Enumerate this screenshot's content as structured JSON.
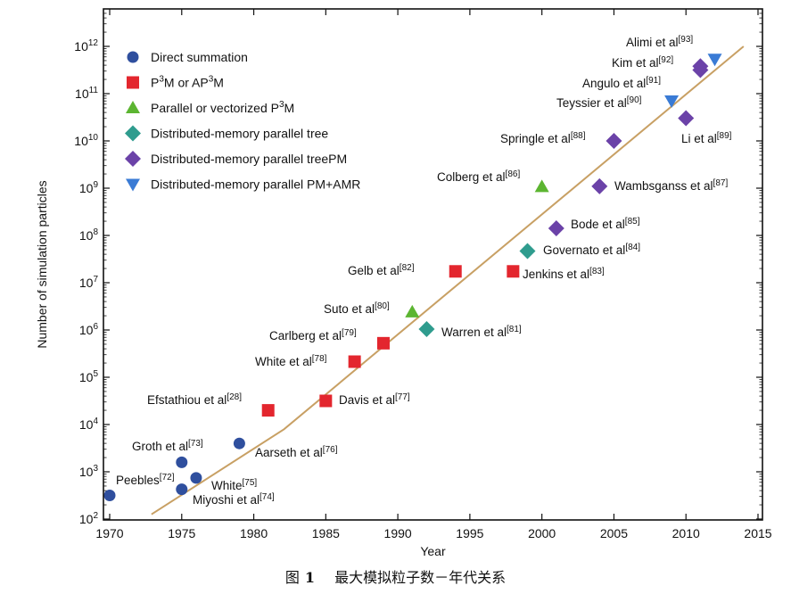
{
  "chart_data": {
    "type": "scatter",
    "xlabel": "Year",
    "ylabel": "Number of simulation particles",
    "xlim": [
      1970,
      2015
    ],
    "ylim_log10": [
      2,
      12.5
    ],
    "y_scale": "log",
    "x_ticks": [
      1970,
      1975,
      1980,
      1985,
      1990,
      1995,
      2000,
      2005,
      2010,
      2015
    ],
    "y_ticks": [
      {
        "exp": 2,
        "base": "10",
        "sup": "2"
      },
      {
        "exp": 3,
        "base": "10",
        "sup": "3"
      },
      {
        "exp": 4,
        "base": "10",
        "sup": "4"
      },
      {
        "exp": 5,
        "base": "10",
        "sup": "5"
      },
      {
        "exp": 6,
        "base": "10",
        "sup": "6"
      },
      {
        "exp": 7,
        "base": "10",
        "sup": "7"
      },
      {
        "exp": 8,
        "base": "10",
        "sup": "8"
      },
      {
        "exp": 9,
        "base": "10",
        "sup": "9"
      },
      {
        "exp": 10,
        "base": "10",
        "sup": "10"
      },
      {
        "exp": 11,
        "base": "10",
        "sup": "11"
      },
      {
        "exp": 12,
        "base": "10",
        "sup": "12"
      }
    ],
    "legend_position": "top-left",
    "grid": false,
    "trend_line": {
      "color": "#c8a064",
      "points": [
        [
          1972.9,
          2.1
        ],
        [
          1982.1,
          3.9
        ],
        [
          2014,
          12.0
        ]
      ]
    },
    "series": [
      {
        "name": "Direct summation",
        "marker": "circle",
        "color": "#2f4f9e",
        "points": [
          {
            "x": 1970,
            "y": 2.5,
            "label": "",
            "ref": ""
          },
          {
            "x": 1975,
            "y": 2.63,
            "label": "",
            "ref": ""
          },
          {
            "x": 1975,
            "y": 3.2,
            "label": "Groth et al",
            "ref": "[73]"
          },
          {
            "x": 1976,
            "y": 2.87,
            "label": "",
            "ref": ""
          },
          {
            "x": 1979,
            "y": 3.6,
            "label": "Aarseth et al",
            "ref": "[76]"
          }
        ]
      },
      {
        "name": "P3M or AP3M",
        "marker": "square",
        "color": "#e3262e",
        "points": [
          {
            "x": 1981,
            "y": 4.3,
            "label": "Efstathiou et al",
            "ref": "[28]"
          },
          {
            "x": 1985,
            "y": 4.5,
            "label": "Davis et al",
            "ref": "[77]"
          },
          {
            "x": 1987,
            "y": 5.33,
            "label": "White et al",
            "ref": "[78]"
          },
          {
            "x": 1989,
            "y": 5.72,
            "label": "Carlberg et al",
            "ref": "[79]"
          },
          {
            "x": 1994,
            "y": 7.24,
            "label": "Gelb et al",
            "ref": "[82]"
          },
          {
            "x": 1998,
            "y": 7.24,
            "label": "Jenkins et al",
            "ref": "[83]"
          }
        ]
      },
      {
        "name": "Parallel or vectorized P3M",
        "marker": "triangle-up",
        "color": "#5cb531",
        "points": [
          {
            "x": 1991,
            "y": 6.38,
            "label": "Suto et al",
            "ref": "[80]"
          },
          {
            "x": 2000,
            "y": 9.03,
            "label": "Colberg et al",
            "ref": "[86]"
          }
        ]
      },
      {
        "name": "Distributed-memory parallel tree",
        "marker": "diamond",
        "color": "#2f9c8e",
        "points": [
          {
            "x": 1992,
            "y": 6.02,
            "label": "Warren et al",
            "ref": "[81]"
          },
          {
            "x": 1999,
            "y": 7.67,
            "label": "Governato et al",
            "ref": "[84]"
          }
        ]
      },
      {
        "name": "Distributed-memory parallel treePM",
        "marker": "diamond",
        "color": "#6b42a8",
        "points": [
          {
            "x": 2001,
            "y": 8.15,
            "label": "Bode et al",
            "ref": "[85]"
          },
          {
            "x": 2004,
            "y": 9.04,
            "label": "Wambsganss et al",
            "ref": "[87]"
          },
          {
            "x": 2005,
            "y": 10.0,
            "label": "Springle et al",
            "ref": "[88]"
          },
          {
            "x": 2010,
            "y": 10.48,
            "label": "Li et al",
            "ref": "[89]"
          },
          {
            "x": 2011,
            "y": 11.5,
            "label": "Angulo et al",
            "ref": "[91]"
          },
          {
            "x": 2011,
            "y": 11.58,
            "label": "Kim et al",
            "ref": "[92]"
          }
        ]
      },
      {
        "name": "Distributed-memory parallel PM+AMR",
        "marker": "triangle-down",
        "color": "#3a7bd5",
        "points": [
          {
            "x": 2009,
            "y": 10.85,
            "label": "Teyssier et al",
            "ref": "[90]"
          },
          {
            "x": 2012,
            "y": 11.73,
            "label": "Alimi et al",
            "ref": "[93]"
          }
        ]
      }
    ],
    "unlabeled_point_texts": [
      {
        "label": "Peebles",
        "ref": "[72]"
      },
      {
        "label": "White",
        "ref": "[75]"
      },
      {
        "label": "Miyoshi et al",
        "ref": "[74]"
      }
    ],
    "legend_entries": [
      {
        "parts": [
          {
            "t": "Direct summation"
          }
        ]
      },
      {
        "parts": [
          {
            "t": "P"
          },
          {
            "t": "3",
            "sup": true
          },
          {
            "t": "M or AP"
          },
          {
            "t": "3",
            "sup": true
          },
          {
            "t": "M"
          }
        ]
      },
      {
        "parts": [
          {
            "t": "Parallel or vectorized P"
          },
          {
            "t": "3",
            "sup": true
          },
          {
            "t": "M"
          }
        ]
      },
      {
        "parts": [
          {
            "t": "Distributed-memory parallel tree"
          }
        ]
      },
      {
        "parts": [
          {
            "t": "Distributed-memory parallel treePM"
          }
        ]
      },
      {
        "parts": [
          {
            "t": "Distributed-memory parallel PM+AMR"
          }
        ]
      }
    ]
  },
  "caption": {
    "prefix": "图",
    "number": "1",
    "text": "最大模拟粒子数－年代关系"
  }
}
